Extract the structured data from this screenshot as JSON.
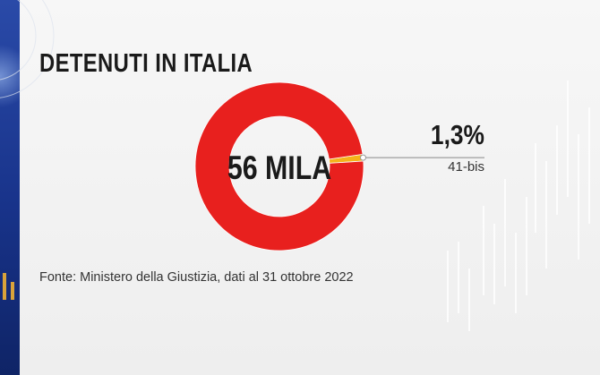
{
  "title": "DETENUTI IN ITALIA",
  "chart_data": {
    "type": "pie",
    "donut": true,
    "center_label": "56 MILA",
    "slices": [
      {
        "label": "41-bis",
        "value": 1.3,
        "display": "1,3%",
        "color": "#f5b21a"
      },
      {
        "label": "",
        "value": 98.7,
        "color": "#e8201e"
      }
    ]
  },
  "source": "Fonte: Ministero della Giustizia, dati al 31 ottobre 2022",
  "colors": {
    "accent_blue": "#1e3c9a",
    "text": "#1a1a1a"
  }
}
